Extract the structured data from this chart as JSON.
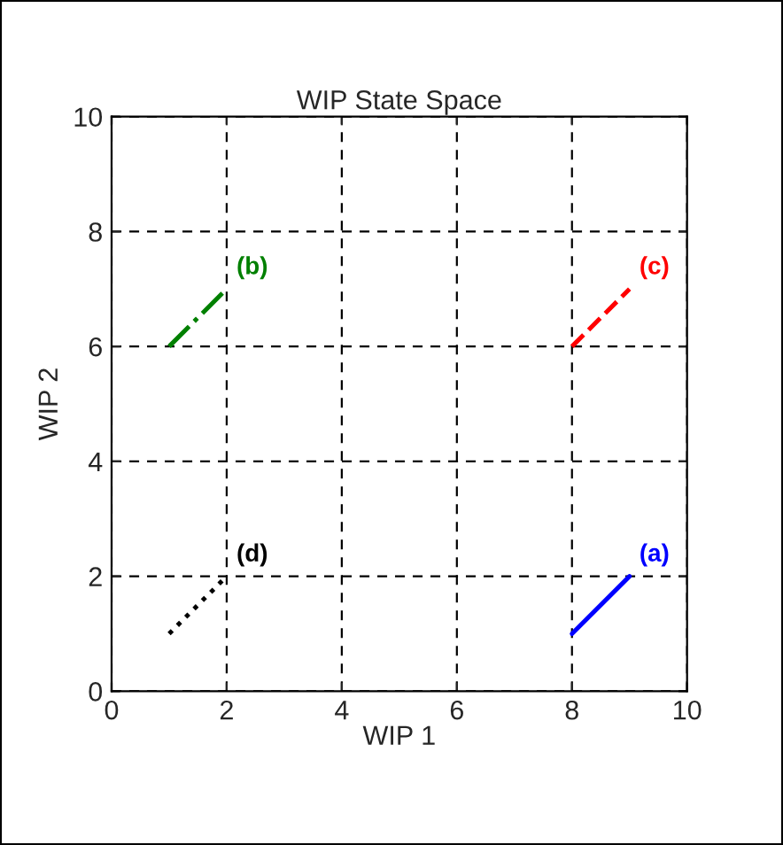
{
  "chart_data": {
    "type": "line",
    "title": "WIP State Space",
    "xlabel": "WIP 1",
    "ylabel": "WIP 2",
    "xlim": [
      0,
      10
    ],
    "ylim": [
      0,
      10
    ],
    "xticks": [
      0,
      2,
      4,
      6,
      8,
      10
    ],
    "yticks": [
      0,
      2,
      4,
      6,
      8,
      10
    ],
    "grid": true,
    "series": [
      {
        "name": "(a)",
        "color": "#0000ff",
        "line_style": "solid",
        "x": [
          8,
          9
        ],
        "values": [
          1,
          2
        ]
      },
      {
        "name": "(b)",
        "color": "#008000",
        "line_style": "dashdot",
        "x": [
          1,
          2
        ],
        "values": [
          6,
          7
        ]
      },
      {
        "name": "(c)",
        "color": "#ff0000",
        "line_style": "dashed",
        "x": [
          8,
          9
        ],
        "values": [
          6,
          7
        ]
      },
      {
        "name": "(d)",
        "color": "#000000",
        "line_style": "dotted",
        "x": [
          1,
          2
        ],
        "values": [
          1,
          2
        ]
      }
    ]
  }
}
